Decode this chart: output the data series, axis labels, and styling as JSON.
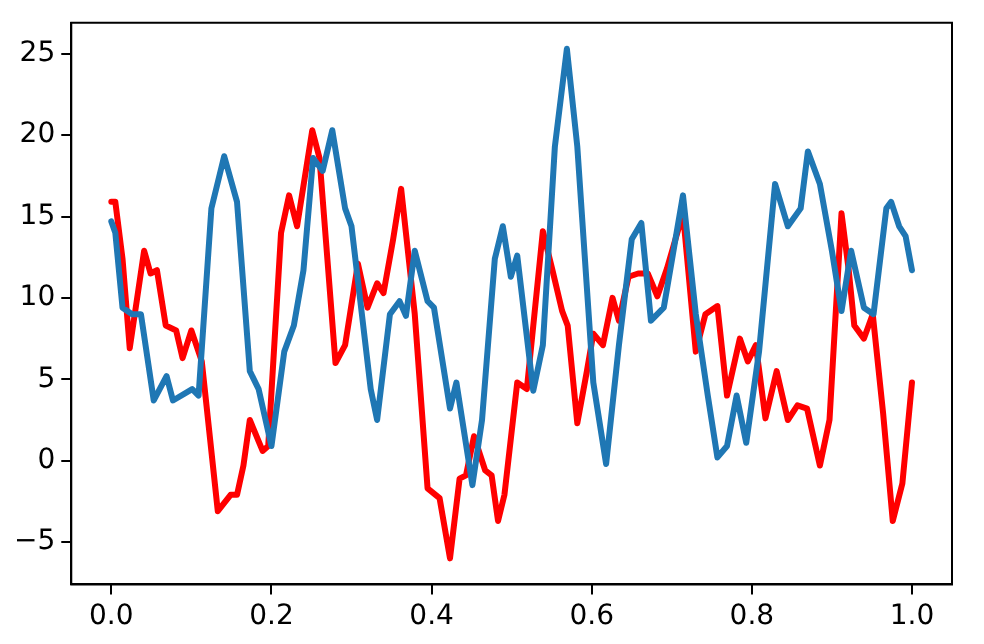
{
  "chart_data": {
    "type": "line",
    "grid": false,
    "legend": false,
    "marker": "none",
    "line_style": "solid",
    "xlim": [
      -0.05,
      1.05
    ],
    "ylim": [
      -7.6,
      26.9
    ],
    "xticks": [
      {
        "value": 0,
        "label": "0.0"
      },
      {
        "value": 0.2,
        "label": "0.2"
      },
      {
        "value": 0.4,
        "label": "0.4"
      },
      {
        "value": 0.6,
        "label": "0.6"
      },
      {
        "value": 0.8,
        "label": "0.8"
      },
      {
        "value": 1,
        "label": "1.0"
      }
    ],
    "yticks": [
      {
        "value": -5,
        "label": "−5"
      },
      0,
      5,
      10,
      15,
      20,
      25
    ],
    "series": [
      {
        "color": "#1f77b4",
        "x": [
          0.0,
          0.005,
          0.014,
          0.026,
          0.037,
          0.053,
          0.069,
          0.077,
          0.101,
          0.109,
          0.125,
          0.141,
          0.157,
          0.173,
          0.184,
          0.2,
          0.216,
          0.228,
          0.24,
          0.252,
          0.264,
          0.276,
          0.292,
          0.3,
          0.324,
          0.332,
          0.348,
          0.36,
          0.368,
          0.379,
          0.395,
          0.403,
          0.423,
          0.431,
          0.451,
          0.463,
          0.479,
          0.489,
          0.499,
          0.507,
          0.527,
          0.539,
          0.554,
          0.569,
          0.582,
          0.602,
          0.618,
          0.634,
          0.65,
          0.662,
          0.674,
          0.69,
          0.714,
          0.73,
          0.745,
          0.757,
          0.769,
          0.781,
          0.793,
          0.809,
          0.829,
          0.845,
          0.861,
          0.87,
          0.885,
          0.9,
          0.912,
          0.924,
          0.94,
          0.952,
          0.968,
          0.974,
          0.984,
          0.992,
          1.0
        ],
        "values": [
          14.7,
          14.0,
          9.4,
          9.0,
          9.0,
          3.7,
          5.2,
          3.7,
          4.4,
          4.0,
          15.5,
          18.7,
          15.9,
          5.5,
          4.4,
          0.9,
          6.7,
          8.3,
          11.7,
          18.6,
          17.8,
          20.3,
          15.5,
          14.4,
          4.4,
          2.5,
          9.0,
          9.8,
          8.9,
          12.9,
          9.8,
          9.4,
          3.2,
          4.8,
          -1.5,
          2.5,
          12.4,
          14.4,
          11.3,
          12.6,
          4.3,
          7.1,
          19.3,
          25.3,
          19.3,
          4.8,
          -0.2,
          7.1,
          13.6,
          14.6,
          8.6,
          9.4,
          16.3,
          9.0,
          4.0,
          0.2,
          0.9,
          4.0,
          1.1,
          6.7,
          17.0,
          14.4,
          15.5,
          19.0,
          17.0,
          12.9,
          9.2,
          12.9,
          9.4,
          9.0,
          15.5,
          15.9,
          14.4,
          13.8,
          11.7
        ]
      },
      {
        "color": "#ff0000",
        "x": [
          0.0,
          0.005,
          0.014,
          0.023,
          0.041,
          0.049,
          0.057,
          0.068,
          0.081,
          0.089,
          0.1,
          0.113,
          0.133,
          0.149,
          0.157,
          0.165,
          0.173,
          0.189,
          0.196,
          0.212,
          0.222,
          0.232,
          0.251,
          0.26,
          0.28,
          0.292,
          0.308,
          0.32,
          0.332,
          0.34,
          0.352,
          0.362,
          0.379,
          0.395,
          0.41,
          0.423,
          0.435,
          0.443,
          0.453,
          0.467,
          0.475,
          0.483,
          0.491,
          0.507,
          0.519,
          0.539,
          0.551,
          0.563,
          0.57,
          0.582,
          0.594,
          0.602,
          0.614,
          0.626,
          0.634,
          0.646,
          0.658,
          0.67,
          0.682,
          0.694,
          0.714,
          0.73,
          0.742,
          0.757,
          0.769,
          0.785,
          0.795,
          0.805,
          0.817,
          0.831,
          0.845,
          0.857,
          0.869,
          0.885,
          0.897,
          0.912,
          0.921,
          0.928,
          0.94,
          0.951,
          0.964,
          0.976,
          0.988,
          1.0
        ],
        "values": [
          15.9,
          15.9,
          12.4,
          6.9,
          12.9,
          11.5,
          11.7,
          8.3,
          8.0,
          6.3,
          8.0,
          6.1,
          -3.1,
          -2.1,
          -2.1,
          -0.3,
          2.5,
          0.6,
          0.9,
          14.0,
          16.3,
          14.4,
          20.3,
          18.6,
          6.0,
          7.1,
          12.1,
          9.4,
          10.9,
          10.3,
          13.6,
          16.7,
          9.0,
          -1.7,
          -2.3,
          -6.0,
          -1.1,
          -0.9,
          1.5,
          -0.6,
          -0.9,
          -3.7,
          -2.1,
          4.8,
          4.4,
          14.1,
          11.7,
          9.2,
          8.3,
          2.3,
          5.5,
          7.8,
          7.1,
          10.0,
          8.6,
          11.3,
          11.5,
          11.5,
          10.1,
          11.8,
          15.2,
          6.7,
          9.0,
          9.5,
          4.0,
          7.5,
          6.1,
          7.1,
          2.6,
          5.5,
          2.5,
          3.4,
          3.2,
          -0.3,
          2.5,
          15.2,
          11.7,
          8.3,
          7.5,
          9.0,
          2.9,
          -3.7,
          -1.4,
          4.8
        ]
      }
    ]
  }
}
